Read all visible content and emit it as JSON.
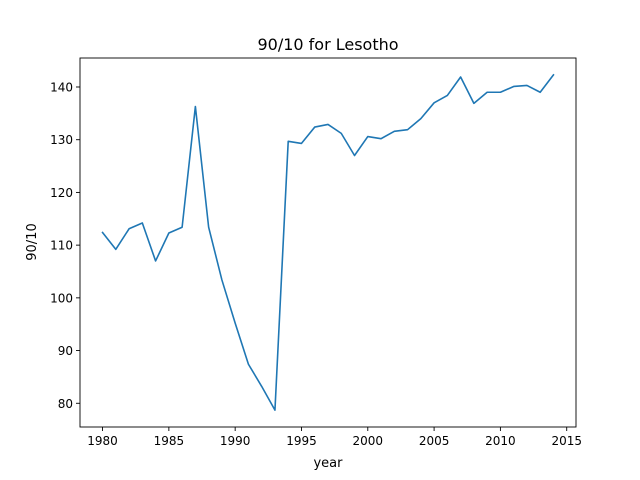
{
  "chart_data": {
    "type": "line",
    "title": "90/10 for Lesotho",
    "xlabel": "year",
    "ylabel": "90/10",
    "xlim": [
      1978.3,
      2015.7
    ],
    "ylim": [
      75.5,
      145.5
    ],
    "xticks": [
      1980,
      1985,
      1990,
      1995,
      2000,
      2005,
      2010,
      2015
    ],
    "yticks": [
      80,
      90,
      100,
      110,
      120,
      130,
      140
    ],
    "grid": false,
    "legend": "none",
    "series": [
      {
        "color": "#1f77b4",
        "x": [
          1980,
          1981,
          1982,
          1983,
          1984,
          1985,
          1986,
          1987,
          1988,
          1989,
          1990,
          1991,
          1992,
          1993,
          1994,
          1995,
          1996,
          1997,
          1998,
          1999,
          2000,
          2001,
          2002,
          2003,
          2004,
          2005,
          2006,
          2007,
          2008,
          2009,
          2010,
          2011,
          2012,
          2013,
          2014
        ],
        "y": [
          112.4,
          109.2,
          113.1,
          114.2,
          107.0,
          112.3,
          113.4,
          136.3,
          113.4,
          103.4,
          95.2,
          87.4,
          83.2,
          78.7,
          129.7,
          129.3,
          132.4,
          132.9,
          131.2,
          127.0,
          130.6,
          130.2,
          131.6,
          131.9,
          134.0,
          137.0,
          138.4,
          141.9,
          136.9,
          139.0,
          139.0,
          140.1,
          140.3,
          139.0,
          142.3
        ]
      }
    ]
  }
}
